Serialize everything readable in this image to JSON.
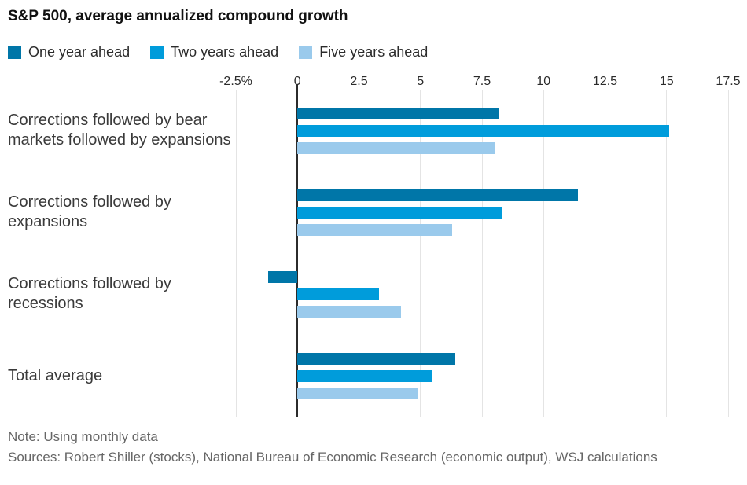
{
  "title": "S&P 500, average annualized compound growth",
  "chart_data": {
    "type": "bar",
    "orientation": "horizontal",
    "title": "S&P 500, average annualized compound growth",
    "categories": [
      "Corrections followed by bear markets followed by expansions",
      "Corrections followed by expansions",
      "Corrections followed by recessions",
      "Total average"
    ],
    "series": [
      {
        "name": "One year ahead",
        "color": "#0076a8",
        "values": [
          8.2,
          11.4,
          -1.2,
          6.4
        ]
      },
      {
        "name": "Two years ahead",
        "color": "#009cdb",
        "values": [
          15.1,
          8.3,
          3.3,
          5.5
        ]
      },
      {
        "name": "Five years ahead",
        "color": "#9acaec",
        "values": [
          8.0,
          6.3,
          4.2,
          4.9
        ]
      }
    ],
    "xlabel": "",
    "ylabel": "",
    "xlim": [
      -2.5,
      17.5
    ],
    "x_tick_values": [
      -2.5,
      0,
      2.5,
      5,
      7.5,
      10,
      12.5,
      15,
      17.5
    ],
    "x_ticks": [
      "-2.5%",
      "0",
      "2.5",
      "5",
      "7.5",
      "10",
      "12.5",
      "15",
      "17.5"
    ],
    "grid": "vertical",
    "legend_position": "top-left",
    "unit": "percent"
  },
  "footer": {
    "note": "Note: Using monthly data",
    "sources": "Sources: Robert Shiller (stocks), National Bureau of Economic Research (economic output), WSJ calculations"
  },
  "colors": {
    "zero_axis_line": "#2b2b2b",
    "gridline": "#e4e4e4",
    "title_text": "#111111",
    "label_text": "#3a3a3a",
    "footer_text": "#666666"
  }
}
